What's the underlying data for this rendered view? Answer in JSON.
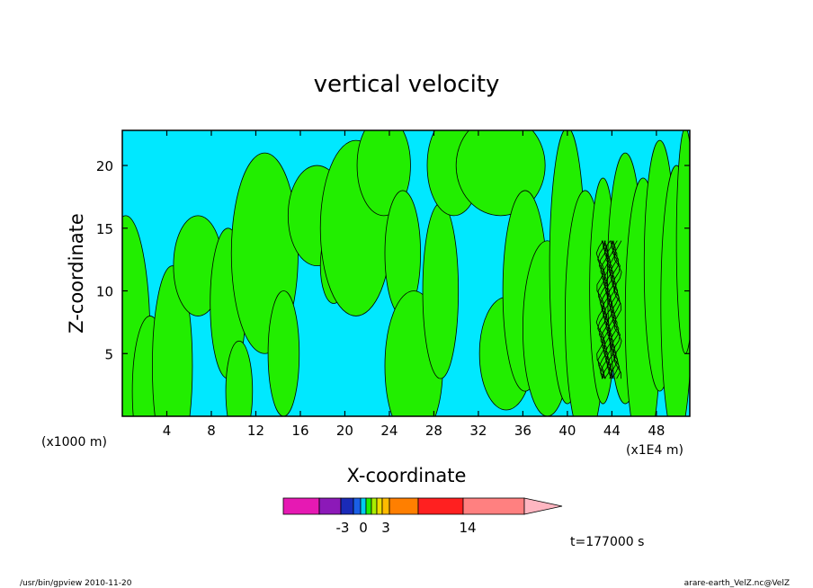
{
  "chart_data": {
    "type": "heatmap",
    "title": "vertical velocity",
    "xlabel": "X-coordinate",
    "ylabel": "Z-coordinate",
    "x_scale_note_left": "(x1000 m)",
    "x_scale_note_right": "(x1E4 m)",
    "xlim": [
      0,
      51
    ],
    "ylim": [
      0,
      22.8
    ],
    "x_ticks": [
      "4",
      "8",
      "12",
      "16",
      "20",
      "24",
      "28",
      "32",
      "36",
      "40",
      "44",
      "48"
    ],
    "y_ticks": [
      "5",
      "10",
      "15",
      "20"
    ],
    "colors": {
      "background_band": "#00e8ff",
      "positive_band": "#22ee00",
      "contour": "#000000"
    },
    "colorbar": {
      "colors": [
        "#e619b3",
        "#8c19b8",
        "#1a2ab8",
        "#1a5fe6",
        "#00ccee",
        "#22ee00",
        "#aaee00",
        "#eedd00",
        "#ffbb00",
        "#ff7f00",
        "#ff2020",
        "#ff8080",
        "#ffb6c1"
      ],
      "labels": [
        "-3",
        "0",
        "3",
        "14"
      ]
    },
    "time_label": "t=177000 s"
  },
  "footer": {
    "left": "/usr/bin/gpview   2010-11-20",
    "right": "arare-earth_VelZ.nc@VelZ"
  }
}
